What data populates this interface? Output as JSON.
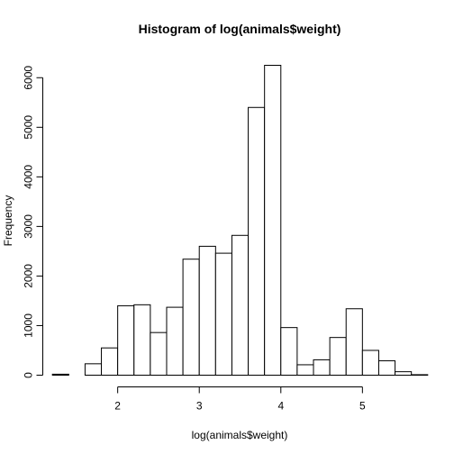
{
  "chart_data": {
    "type": "bar",
    "title": "Histogram of log(animals$weight)",
    "xlabel": "log(animals$weight)",
    "ylabel": "Frequency",
    "xlim": [
      1.2,
      5.8
    ],
    "ylim": [
      0,
      6250
    ],
    "xticks": [
      2,
      3,
      4,
      5
    ],
    "yticks": [
      0,
      1000,
      2000,
      3000,
      4000,
      5000,
      6000
    ],
    "bin_width": 0.2,
    "bins": [
      {
        "x0": 1.2,
        "x1": 1.4,
        "count": 20
      },
      {
        "x0": 1.4,
        "x1": 1.6,
        "count": 0
      },
      {
        "x0": 1.6,
        "x1": 1.8,
        "count": 230
      },
      {
        "x0": 1.8,
        "x1": 2.0,
        "count": 550
      },
      {
        "x0": 2.0,
        "x1": 2.2,
        "count": 1400
      },
      {
        "x0": 2.2,
        "x1": 2.4,
        "count": 1420
      },
      {
        "x0": 2.4,
        "x1": 2.6,
        "count": 860
      },
      {
        "x0": 2.6,
        "x1": 2.8,
        "count": 1370
      },
      {
        "x0": 2.8,
        "x1": 3.0,
        "count": 2340
      },
      {
        "x0": 3.0,
        "x1": 3.2,
        "count": 2600
      },
      {
        "x0": 3.2,
        "x1": 3.4,
        "count": 2460
      },
      {
        "x0": 3.4,
        "x1": 3.6,
        "count": 2820
      },
      {
        "x0": 3.6,
        "x1": 3.8,
        "count": 5400
      },
      {
        "x0": 3.8,
        "x1": 4.0,
        "count": 6250
      },
      {
        "x0": 4.0,
        "x1": 4.2,
        "count": 960
      },
      {
        "x0": 4.2,
        "x1": 4.4,
        "count": 210
      },
      {
        "x0": 4.4,
        "x1": 4.6,
        "count": 310
      },
      {
        "x0": 4.6,
        "x1": 4.8,
        "count": 760
      },
      {
        "x0": 4.8,
        "x1": 5.0,
        "count": 1340
      },
      {
        "x0": 5.0,
        "x1": 5.2,
        "count": 500
      },
      {
        "x0": 5.2,
        "x1": 5.4,
        "count": 290
      },
      {
        "x0": 5.4,
        "x1": 5.6,
        "count": 70
      },
      {
        "x0": 5.6,
        "x1": 5.8,
        "count": 10
      }
    ],
    "grid": false,
    "legend": "none",
    "colors": {
      "bar_fill": "#ffffff",
      "bar_stroke": "#000000"
    }
  }
}
